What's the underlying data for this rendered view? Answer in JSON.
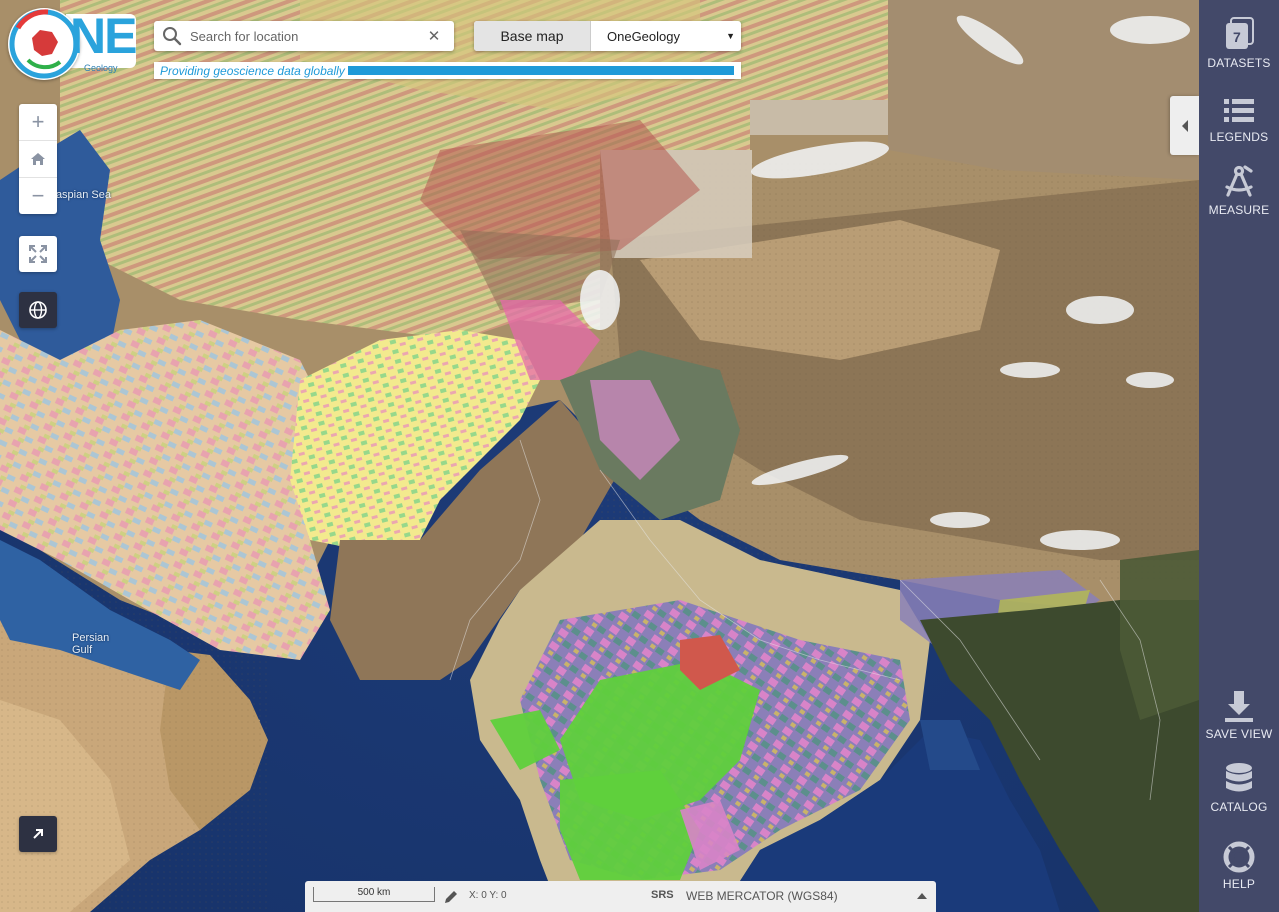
{
  "header": {
    "logo_text": "NE",
    "logo_sub": "Geology",
    "tagline": "Providing geoscience data globally",
    "search": {
      "placeholder": "Search for location",
      "value": ""
    },
    "basemap": {
      "label": "Base map",
      "selected": "OneGeology"
    }
  },
  "map": {
    "labels": [
      "Caspian Sea",
      "Persian Gulf"
    ],
    "colors": {
      "ocean": "#1f3f7a",
      "ocean_shallow": "#2f6aa8",
      "desert": "#b9a27c",
      "mountains": "#7a6a55",
      "snow": "#f4f6f8",
      "geology_yellow": "#f3ea8e",
      "geology_green": "#5fd03c",
      "geology_pink": "#d884c8",
      "geology_red": "#d0584c",
      "geology_purple": "#8a7fb8",
      "forest": "#3d4a2e"
    }
  },
  "controls": {
    "zoom_in": "+",
    "zoom_out": "−",
    "home_icon": "home-icon",
    "fullscreen_icon": "expand-icon",
    "globe_icon": "globe-icon",
    "corner_icon": "arrow-up-right-icon"
  },
  "sidebar": {
    "datasets_count": "7",
    "items": [
      {
        "label": "DATASETS",
        "icon": "stack-icon"
      },
      {
        "label": "LEGENDS",
        "icon": "list-icon"
      },
      {
        "label": "MEASURE",
        "icon": "compass-icon"
      },
      {
        "label": "SAVE VIEW",
        "icon": "download-icon"
      },
      {
        "label": "CATALOG",
        "icon": "database-icon"
      },
      {
        "label": "HELP",
        "icon": "lifebuoy-icon"
      }
    ],
    "accent": "#434969"
  },
  "bottom_bar": {
    "scale": "500 km",
    "coords": "X: 0 Y: 0",
    "srs_label": "SRS",
    "srs_value": "WEB MERCATOR (WGS84)"
  }
}
